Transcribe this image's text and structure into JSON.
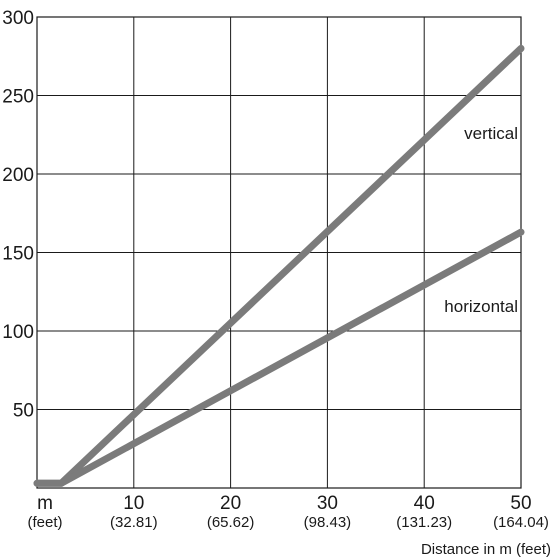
{
  "chart_data": {
    "type": "line",
    "title": "",
    "xlabel": "Distance in m (feet)",
    "ylabel": "",
    "xlim": [
      0,
      50
    ],
    "ylim": [
      0,
      300
    ],
    "grid": true,
    "x_ticks": [
      {
        "value": 0,
        "label": "m",
        "sub": "(feet)"
      },
      {
        "value": 10,
        "label": "10",
        "sub": "(32.81)"
      },
      {
        "value": 20,
        "label": "20",
        "sub": "(65.62)"
      },
      {
        "value": 30,
        "label": "30",
        "sub": "(98.43)"
      },
      {
        "value": 40,
        "label": "40",
        "sub": "(131.23)"
      },
      {
        "value": 50,
        "label": "50",
        "sub": "(164.04)"
      }
    ],
    "y_ticks": [
      {
        "value": 50,
        "label": "50"
      },
      {
        "value": 100,
        "label": "100"
      },
      {
        "value": 150,
        "label": "150"
      },
      {
        "value": 200,
        "label": "200"
      },
      {
        "value": 250,
        "label": "250"
      },
      {
        "value": 300,
        "label": "300"
      }
    ],
    "series": [
      {
        "name": "vertical",
        "color": "#7b7b7b",
        "x": [
          0,
          2.5,
          50
        ],
        "y": [
          3,
          3,
          280
        ]
      },
      {
        "name": "horizontal",
        "color": "#7b7b7b",
        "x": [
          0,
          2.5,
          50
        ],
        "y": [
          3,
          3,
          163
        ]
      }
    ],
    "annotations": [
      {
        "series": "vertical",
        "text": "vertical",
        "x": 50,
        "y": 226
      },
      {
        "series": "horizontal",
        "text": "horizontal",
        "x": 50,
        "y": 116
      }
    ]
  }
}
